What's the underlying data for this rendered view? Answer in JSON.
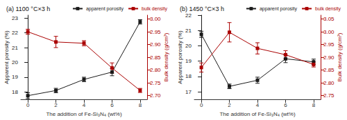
{
  "chart_data": [
    {
      "type": "line",
      "title": "(a) 1100 °C×3 h",
      "x": [
        0,
        2,
        4,
        6,
        8
      ],
      "xlabel": "The addition of Fe-Si₃N₄ (wt%)",
      "ylabel": "Apparent porosity (%)",
      "y2label": "Bulk density (g/cm³)",
      "xlim": [
        -0.5,
        8.5
      ],
      "xticks": [
        0,
        2,
        4,
        6,
        8
      ],
      "ylim": [
        17.5,
        23.2
      ],
      "yticks": [
        18,
        19,
        20,
        21,
        22,
        23
      ],
      "y2lim": [
        2.685,
        3.015
      ],
      "y2ticks": [
        {
          "value": 2.7,
          "label": "2.70"
        },
        {
          "value": 2.75,
          "label": "2.75"
        },
        {
          "value": 2.8,
          "label": "2.80"
        },
        {
          "value": 2.85,
          "label": "2.85"
        },
        {
          "value": 2.9,
          "label": "2.90"
        },
        {
          "value": 2.95,
          "label": "2.95"
        },
        {
          "value": 3.0,
          "label": "3.00"
        }
      ],
      "grid": false,
      "legend": "upper right",
      "series": [
        {
          "name": "apparent porosity",
          "color": "#1a1a1a",
          "marker": "square",
          "values": [
            17.75,
            18.1,
            18.85,
            19.35,
            22.75
          ],
          "errors": [
            0.2,
            0.15,
            0.15,
            0.25,
            0.15
          ]
        },
        {
          "name": "bulk density",
          "color": "#aa0000",
          "marker": "square",
          "axis": "y2",
          "values": [
            2.95,
            2.91,
            2.905,
            2.808,
            2.72
          ],
          "errors": [
            0.01,
            0.022,
            0.01,
            0.02,
            0.008
          ]
        }
      ]
    },
    {
      "type": "line",
      "title": "(b) 1450 °C×3 h",
      "x": [
        0,
        2,
        4,
        6,
        8
      ],
      "xlabel": "The addition of Fe-Si₃N₄ (wt%)",
      "ylabel": "Apparent porosity (%)",
      "y2label": "Bulk density (g/cm³)",
      "xlim": [
        -0.5,
        8.5
      ],
      "xticks": [
        0,
        2,
        4,
        6,
        8
      ],
      "ylim": [
        16.5,
        22.0
      ],
      "yticks": [
        17,
        18,
        19,
        20,
        21,
        22
      ],
      "y2lim": [
        2.735,
        3.065
      ],
      "y2ticks": [
        {
          "value": 2.75,
          "label": "2.75"
        },
        {
          "value": 2.8,
          "label": "2.80"
        },
        {
          "value": 2.85,
          "label": "2.85"
        },
        {
          "value": 2.9,
          "label": "2.90"
        },
        {
          "value": 2.95,
          "label": "2.95"
        },
        {
          "value": 3.0,
          "label": "3.00"
        },
        {
          "value": 3.05,
          "label": "3.05"
        }
      ],
      "grid": false,
      "legend": "upper right",
      "series": [
        {
          "name": "apparent porosity",
          "color": "#1a1a1a",
          "marker": "square",
          "values": [
            20.75,
            17.35,
            17.75,
            19.15,
            18.95
          ],
          "errors": [
            0.2,
            0.15,
            0.2,
            0.25,
            0.18
          ]
        },
        {
          "name": "bulk density",
          "color": "#aa0000",
          "marker": "square",
          "axis": "y2",
          "values": [
            2.86,
            2.998,
            2.935,
            2.91,
            2.872
          ],
          "errors": [
            0.018,
            0.038,
            0.022,
            0.016,
            0.01
          ]
        }
      ]
    }
  ]
}
